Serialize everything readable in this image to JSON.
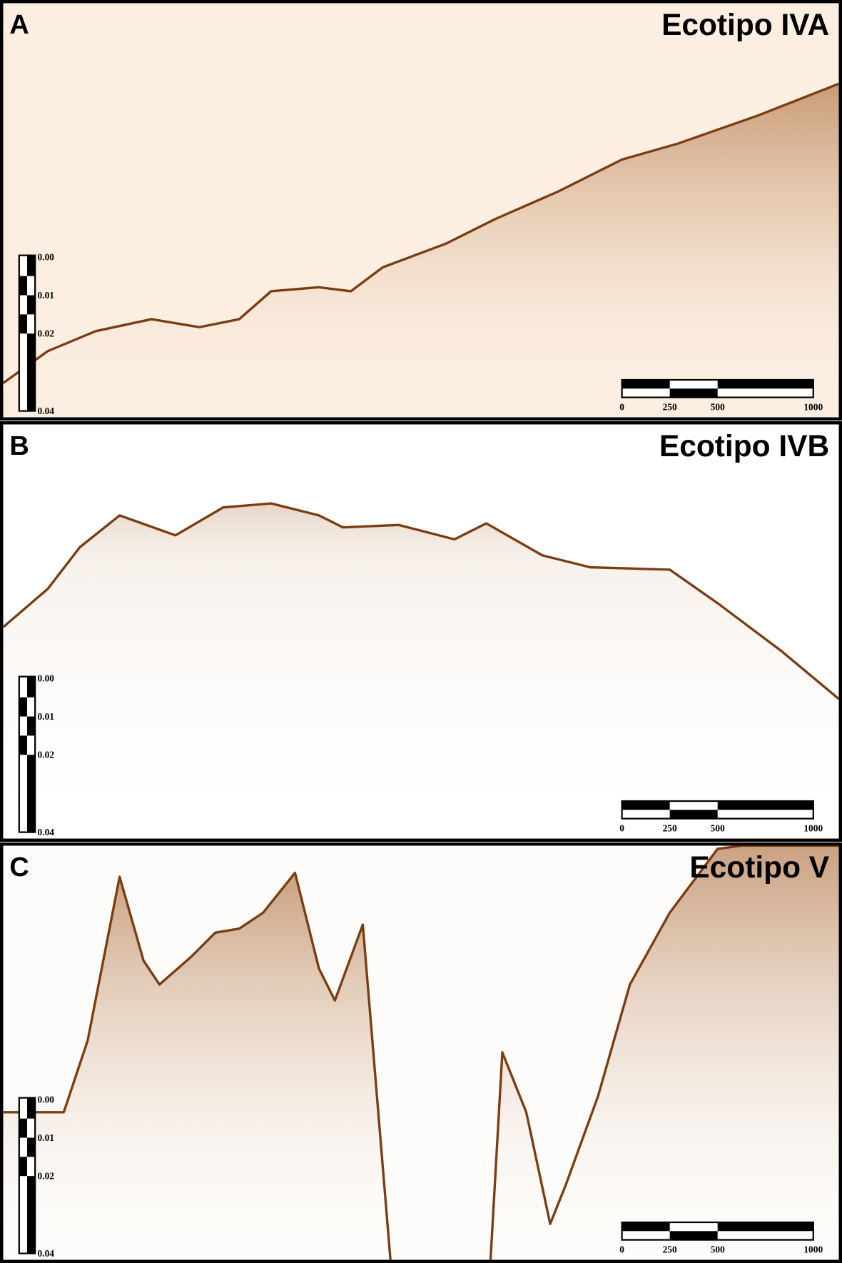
{
  "panels": [
    {
      "letter": "A",
      "title": "Ecotipo IVA"
    },
    {
      "letter": "B",
      "title": "Ecotipo IVB"
    },
    {
      "letter": "C",
      "title": "Ecotipo V"
    }
  ],
  "depth_scale": [
    "0.00",
    "0.01",
    "0.02",
    "0.04"
  ],
  "distance_scale": [
    "0",
    "250",
    "500",
    "1000"
  ]
}
